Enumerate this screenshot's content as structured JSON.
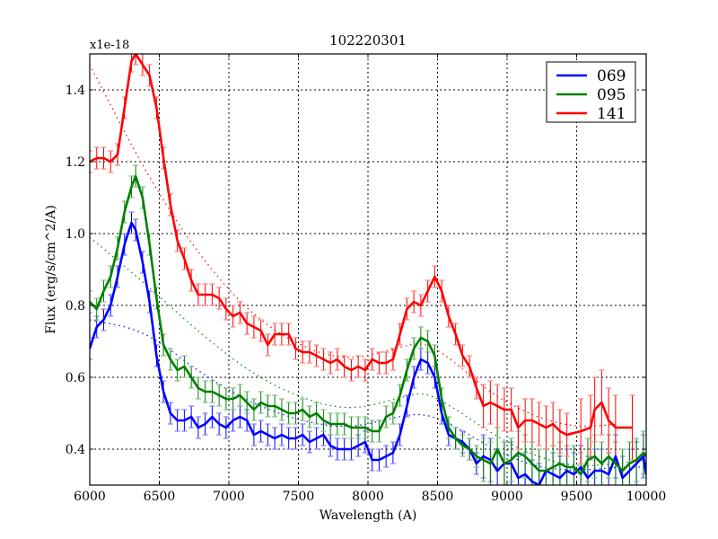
{
  "chart_data": {
    "type": "line",
    "title": "102220301",
    "xlabel": "Wavelength (A)",
    "ylabel": "Flux (erg/s/cm^2/A)",
    "y_offset_label": "x1e-18",
    "xlim": [
      6000,
      10000
    ],
    "ylim": [
      0.3,
      1.5
    ],
    "x_ticks": [
      6000,
      6500,
      7000,
      7500,
      8000,
      8500,
      9000,
      9500,
      10000
    ],
    "x_tick_labels": [
      "6000",
      "6500",
      "7000",
      "7500",
      "8000",
      "8500",
      "9000",
      "9500",
      "10000"
    ],
    "y_ticks": [
      0.4,
      0.6,
      0.8,
      1.0,
      1.2,
      1.4
    ],
    "y_tick_labels": [
      "0.4",
      "0.6",
      "0.8",
      "1.0",
      "1.2",
      "1.4"
    ],
    "grid": true,
    "legend_position": "upper right",
    "series": [
      {
        "name": "069",
        "color": "#0000ff",
        "x": [
          6000,
          6050,
          6100,
          6150,
          6200,
          6250,
          6300,
          6330,
          6380,
          6430,
          6480,
          6530,
          6580,
          6630,
          6680,
          6730,
          6780,
          6830,
          6880,
          6930,
          6980,
          7030,
          7080,
          7130,
          7180,
          7230,
          7280,
          7330,
          7380,
          7430,
          7480,
          7530,
          7580,
          7630,
          7680,
          7730,
          7780,
          7830,
          7880,
          7930,
          7980,
          8030,
          8080,
          8130,
          8180,
          8230,
          8280,
          8330,
          8380,
          8430,
          8480,
          8530,
          8580,
          8630,
          8680,
          8730,
          8780,
          8830,
          8880,
          8930,
          8980,
          9030,
          9080,
          9130,
          9180,
          9230,
          9280,
          9330,
          9380,
          9430,
          9480,
          9530,
          9580,
          9630,
          9680,
          9730,
          9780,
          9830,
          9880,
          9930,
          9980,
          10000
        ],
        "values": [
          0.68,
          0.74,
          0.76,
          0.8,
          0.88,
          0.97,
          1.03,
          1.01,
          0.92,
          0.81,
          0.66,
          0.56,
          0.5,
          0.48,
          0.48,
          0.49,
          0.46,
          0.47,
          0.49,
          0.47,
          0.46,
          0.48,
          0.49,
          0.48,
          0.44,
          0.45,
          0.44,
          0.43,
          0.44,
          0.43,
          0.43,
          0.44,
          0.42,
          0.43,
          0.44,
          0.41,
          0.4,
          0.4,
          0.4,
          0.41,
          0.42,
          0.37,
          0.37,
          0.38,
          0.39,
          0.44,
          0.52,
          0.6,
          0.65,
          0.64,
          0.6,
          0.5,
          0.44,
          0.43,
          0.42,
          0.4,
          0.36,
          0.38,
          0.37,
          0.34,
          0.36,
          0.36,
          0.32,
          0.33,
          0.31,
          0.3,
          0.34,
          0.33,
          0.32,
          0.34,
          0.33,
          0.35,
          0.32,
          0.34,
          0.34,
          0.33,
          0.38,
          0.32,
          0.34,
          0.36,
          0.38,
          0.33
        ],
        "fit": [
          [
            6000,
            0.76
          ],
          [
            6400,
            0.73
          ],
          [
            6800,
            0.61
          ],
          [
            7200,
            0.52
          ],
          [
            7600,
            0.47
          ],
          [
            7900,
            0.46
          ],
          [
            8200,
            0.49
          ],
          [
            8400,
            0.5
          ],
          [
            8600,
            0.47
          ],
          [
            8900,
            0.4
          ],
          [
            9200,
            0.35
          ],
          [
            9500,
            0.34
          ],
          [
            9800,
            0.35
          ],
          [
            10000,
            0.35
          ]
        ]
      },
      {
        "name": "095",
        "color": "#008000",
        "x": [
          6000,
          6050,
          6100,
          6150,
          6200,
          6250,
          6300,
          6330,
          6380,
          6430,
          6480,
          6530,
          6580,
          6630,
          6680,
          6730,
          6780,
          6830,
          6880,
          6930,
          6980,
          7030,
          7080,
          7130,
          7180,
          7230,
          7280,
          7330,
          7380,
          7430,
          7480,
          7530,
          7580,
          7630,
          7680,
          7730,
          7780,
          7830,
          7880,
          7930,
          7980,
          8030,
          8080,
          8130,
          8180,
          8230,
          8280,
          8330,
          8380,
          8430,
          8480,
          8530,
          8580,
          8630,
          8680,
          8730,
          8780,
          8830,
          8880,
          8930,
          8980,
          9030,
          9080,
          9130,
          9180,
          9230,
          9280,
          9330,
          9380,
          9430,
          9480,
          9530,
          9580,
          9630,
          9680,
          9730,
          9780,
          9830,
          9880,
          9930,
          9980,
          10000
        ],
        "values": [
          0.81,
          0.79,
          0.84,
          0.88,
          0.96,
          1.06,
          1.13,
          1.16,
          1.1,
          0.97,
          0.82,
          0.69,
          0.65,
          0.62,
          0.63,
          0.6,
          0.57,
          0.56,
          0.56,
          0.55,
          0.54,
          0.54,
          0.55,
          0.53,
          0.51,
          0.53,
          0.52,
          0.52,
          0.51,
          0.5,
          0.5,
          0.51,
          0.49,
          0.5,
          0.48,
          0.47,
          0.47,
          0.47,
          0.46,
          0.46,
          0.46,
          0.45,
          0.45,
          0.49,
          0.5,
          0.55,
          0.62,
          0.68,
          0.71,
          0.7,
          0.66,
          0.54,
          0.46,
          0.43,
          0.41,
          0.4,
          0.38,
          0.37,
          0.36,
          0.4,
          0.36,
          0.37,
          0.39,
          0.38,
          0.36,
          0.34,
          0.34,
          0.35,
          0.36,
          0.35,
          0.35,
          0.33,
          0.37,
          0.38,
          0.36,
          0.38,
          0.36,
          0.34,
          0.36,
          0.37,
          0.39,
          0.38
        ],
        "fit": [
          [
            6000,
            0.99
          ],
          [
            6400,
            0.86
          ],
          [
            6800,
            0.72
          ],
          [
            7200,
            0.6
          ],
          [
            7600,
            0.53
          ],
          [
            7900,
            0.51
          ],
          [
            8200,
            0.54
          ],
          [
            8400,
            0.56
          ],
          [
            8600,
            0.52
          ],
          [
            8900,
            0.44
          ],
          [
            9200,
            0.38
          ],
          [
            9500,
            0.35
          ],
          [
            9800,
            0.36
          ],
          [
            10000,
            0.37
          ]
        ]
      },
      {
        "name": "141",
        "color": "#ff0000",
        "x": [
          6000,
          6050,
          6100,
          6150,
          6200,
          6250,
          6300,
          6330,
          6380,
          6430,
          6480,
          6530,
          6580,
          6630,
          6680,
          6730,
          6780,
          6830,
          6880,
          6930,
          6980,
          7030,
          7080,
          7130,
          7180,
          7230,
          7280,
          7330,
          7380,
          7430,
          7480,
          7530,
          7580,
          7630,
          7680,
          7730,
          7780,
          7830,
          7880,
          7930,
          7980,
          8030,
          8080,
          8130,
          8180,
          8230,
          8280,
          8330,
          8380,
          8430,
          8480,
          8530,
          8580,
          8630,
          8680,
          8730,
          8780,
          8830,
          8880,
          8930,
          8980,
          9030,
          9080,
          9130,
          9180,
          9230,
          9280,
          9330,
          9380,
          9430,
          9530,
          9600,
          9630,
          9680,
          9730,
          9780,
          9900
        ],
        "values": [
          1.2,
          1.21,
          1.21,
          1.2,
          1.22,
          1.35,
          1.48,
          1.5,
          1.47,
          1.44,
          1.35,
          1.21,
          1.08,
          0.98,
          0.93,
          0.87,
          0.83,
          0.83,
          0.83,
          0.82,
          0.79,
          0.77,
          0.78,
          0.75,
          0.74,
          0.73,
          0.69,
          0.72,
          0.72,
          0.72,
          0.68,
          0.67,
          0.67,
          0.66,
          0.65,
          0.64,
          0.65,
          0.63,
          0.62,
          0.63,
          0.62,
          0.65,
          0.64,
          0.64,
          0.65,
          0.72,
          0.79,
          0.81,
          0.8,
          0.84,
          0.88,
          0.84,
          0.77,
          0.72,
          0.66,
          0.63,
          0.57,
          0.52,
          0.53,
          0.52,
          0.51,
          0.51,
          0.46,
          0.48,
          0.48,
          0.47,
          0.46,
          0.47,
          0.45,
          0.44,
          0.45,
          0.46,
          0.51,
          0.53,
          0.48,
          0.46,
          0.46
        ],
        "fit": [
          [
            6000,
            1.47
          ],
          [
            6400,
            1.17
          ],
          [
            6800,
            0.93
          ],
          [
            7200,
            0.76
          ],
          [
            7600,
            0.67
          ],
          [
            7900,
            0.65
          ],
          [
            8200,
            0.68
          ],
          [
            8400,
            0.7
          ],
          [
            8600,
            0.65
          ],
          [
            8900,
            0.55
          ],
          [
            9200,
            0.49
          ],
          [
            9500,
            0.46
          ],
          [
            9800,
            0.47
          ]
        ]
      }
    ]
  }
}
